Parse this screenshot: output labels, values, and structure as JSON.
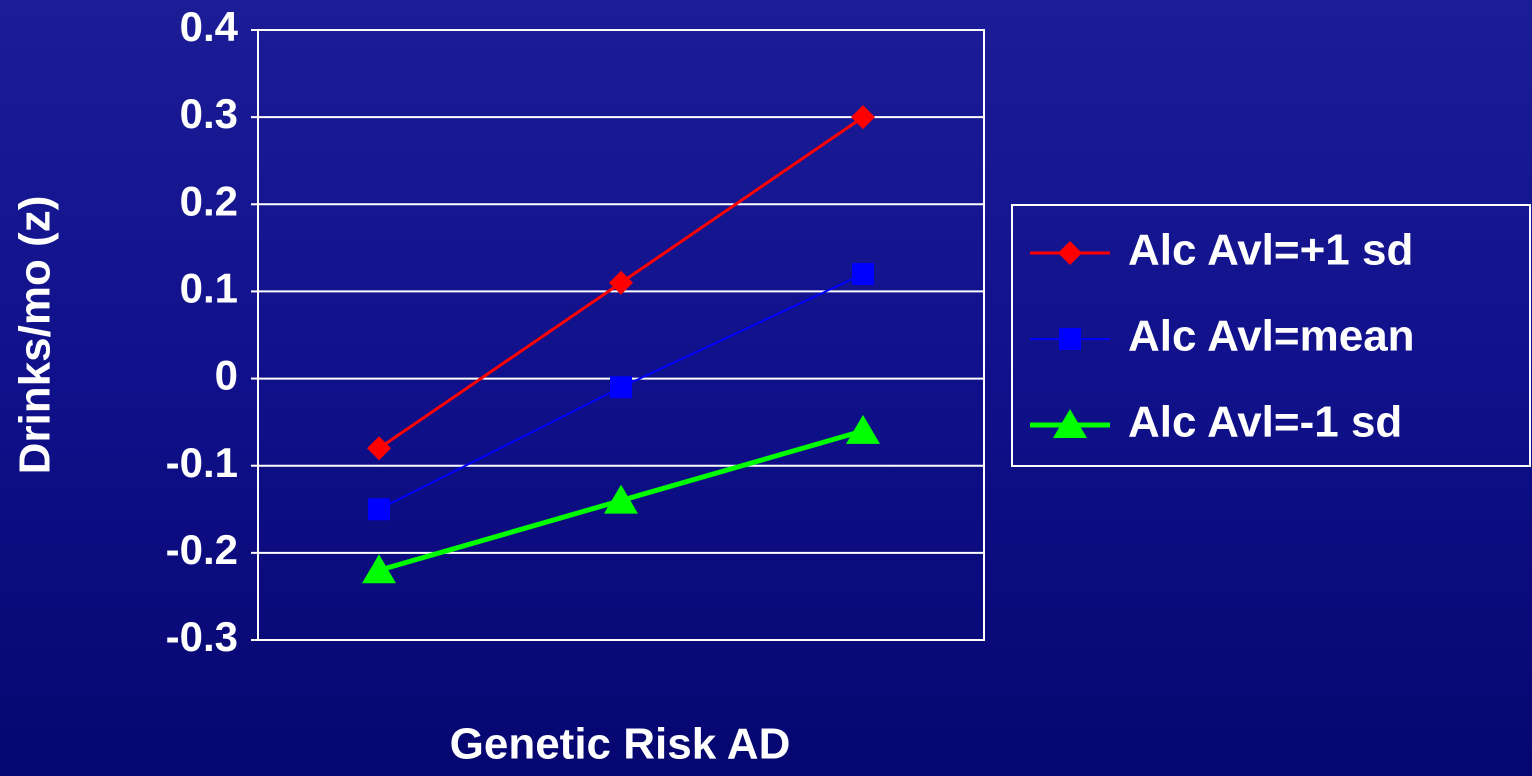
{
  "chart_data": {
    "type": "line",
    "x_label": "Genetic Risk AD",
    "y_label": "Drinks/mo (z)",
    "categories": [
      null,
      null,
      null
    ],
    "series": [
      {
        "name": "Alc Avl=+1 sd",
        "color": "#ff0000",
        "marker": "diamond",
        "values": [
          -0.08,
          0.11,
          0.3
        ]
      },
      {
        "name": "Alc Avl=mean",
        "color": "#0000ff",
        "marker": "square",
        "values": [
          -0.15,
          -0.01,
          0.12
        ]
      },
      {
        "name": "Alc Avl=-1 sd",
        "color": "#00ff00",
        "marker": "triangle",
        "values": [
          -0.22,
          -0.14,
          -0.06
        ]
      }
    ],
    "ylim": [
      -0.3,
      0.4
    ],
    "yticks": [
      -0.3,
      -0.2,
      -0.1,
      0,
      0.1,
      0.2,
      0.3,
      0.4
    ],
    "grid": true,
    "legend": "right"
  }
}
